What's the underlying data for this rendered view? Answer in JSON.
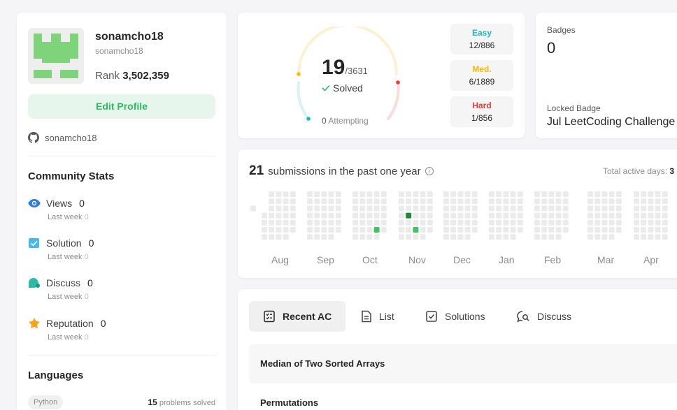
{
  "profile": {
    "username": "sonamcho18",
    "handle": "sonamcho18",
    "rank_label": "Rank",
    "rank_value": "3,502,359",
    "edit_label": "Edit Profile",
    "github": "sonamcho18"
  },
  "community": {
    "title": "Community Stats",
    "stats": [
      {
        "label": "Views",
        "value": "0",
        "sub_label": "Last week",
        "sub_value": "0",
        "icon": "eye-icon",
        "color": "#2b7de9"
      },
      {
        "label": "Solution",
        "value": "0",
        "sub_label": "Last week",
        "sub_value": "0",
        "icon": "solution-check-icon",
        "color": "#45b8f0"
      },
      {
        "label": "Discuss",
        "value": "0",
        "sub_label": "Last week",
        "sub_value": "0",
        "icon": "discuss-icon",
        "color": "#2cbba6"
      },
      {
        "label": "Reputation",
        "value": "0",
        "sub_label": "Last week",
        "sub_value": "0",
        "icon": "star-icon",
        "color": "#ffa116"
      }
    ]
  },
  "languages": {
    "title": "Languages",
    "items": [
      {
        "name": "Python",
        "count": "15",
        "suffix": "problems solved"
      }
    ]
  },
  "solved": {
    "count": "19",
    "total": "/3631",
    "label": "Solved",
    "attempting_count": "0",
    "attempting_label": "Attempting",
    "difficulties": [
      {
        "name": "Easy",
        "count": "12/886",
        "color": "#1cbaba"
      },
      {
        "name": "Med.",
        "count": "6/1889",
        "color": "#ffb700"
      },
      {
        "name": "Hard",
        "count": "1/856",
        "color": "#f63737"
      }
    ]
  },
  "badges": {
    "label": "Badges",
    "count": "0",
    "locked_label": "Locked Badge",
    "locked_name": "Jul LeetCoding Challenge"
  },
  "submissions": {
    "count": "21",
    "text": "submissions in the past one year",
    "active_days_label": "Total active days:",
    "active_days": "3",
    "months": [
      "Aug",
      "Sep",
      "Oct",
      "Nov",
      "Dec",
      "Jan",
      "Feb",
      "Mar",
      "Apr"
    ],
    "colors": {
      "empty": "#ebebeb",
      "light": "#40c463",
      "dark": "#1e8a3a"
    }
  },
  "tabs": [
    {
      "label": "Recent AC",
      "icon": "recent-ac-icon",
      "active": true
    },
    {
      "label": "List",
      "icon": "list-icon",
      "active": false
    },
    {
      "label": "Solutions",
      "icon": "solutions-icon",
      "active": false
    },
    {
      "label": "Discuss",
      "icon": "discuss-search-icon",
      "active": false
    }
  ],
  "recent": [
    {
      "title": "Median of Two Sorted Arrays"
    },
    {
      "title": "Permutations"
    }
  ]
}
